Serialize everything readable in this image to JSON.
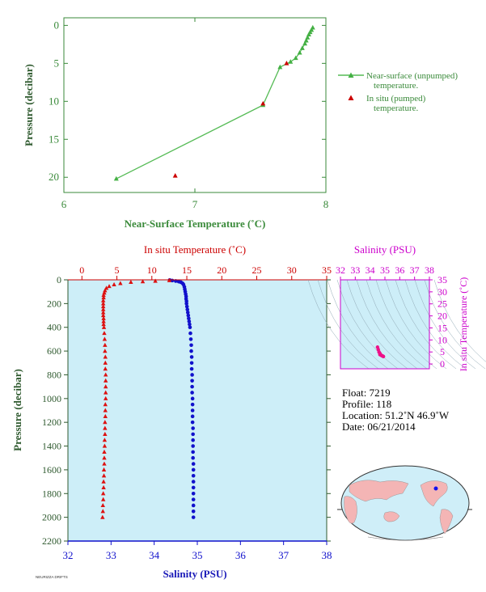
{
  "chart_data": [
    {
      "type": "line",
      "xlabel": "Near-Surface Temperature (˚C)",
      "ylabel": "Pressure (decibar)",
      "xlim": [
        6,
        8
      ],
      "ylim": [
        22,
        -1
      ],
      "x_ticks": [
        "6",
        "7",
        "8"
      ],
      "y_ticks": [
        "0",
        "5",
        "10",
        "15",
        "20"
      ],
      "legend_position": "right",
      "series": [
        {
          "name": "Near-surface (unpumped) temperature.",
          "marker": "triangle",
          "color": "#44b044",
          "points": [
            [
              7.9,
              0.3
            ],
            [
              7.89,
              0.6
            ],
            [
              7.88,
              0.9
            ],
            [
              7.87,
              1.2
            ],
            [
              7.86,
              1.6
            ],
            [
              7.85,
              2.0
            ],
            [
              7.84,
              2.4
            ],
            [
              7.82,
              3.0
            ],
            [
              7.8,
              3.6
            ],
            [
              7.77,
              4.3
            ],
            [
              7.73,
              4.8
            ],
            [
              7.65,
              5.5
            ],
            [
              7.52,
              10.5
            ],
            [
              6.4,
              20.2
            ]
          ]
        },
        {
          "name": "In situ (pumped) temperature.",
          "marker": "triangle",
          "color": "#cc0000",
          "points": [
            [
              7.7,
              5.0
            ],
            [
              7.52,
              10.3
            ],
            [
              6.85,
              19.8
            ]
          ]
        }
      ]
    },
    {
      "type": "scatter",
      "ylabel": "Pressure (decibar)",
      "ylim": [
        2200,
        0
      ],
      "y_ticks": [
        "0",
        "200",
        "400",
        "600",
        "800",
        "1000",
        "1200",
        "1400",
        "1600",
        "1800",
        "2000",
        "2200"
      ],
      "top_axis": {
        "label": "In situ Temperature (˚C)",
        "range": [
          -2,
          35
        ],
        "ticks": [
          "0",
          "5",
          "10",
          "15",
          "20",
          "25",
          "30",
          "35"
        ]
      },
      "bottom_axis": {
        "label": "Salinity (PSU)",
        "range": [
          32,
          38
        ],
        "ticks": [
          "32",
          "33",
          "34",
          "35",
          "36",
          "37",
          "38"
        ]
      },
      "series": [
        {
          "name": "In situ Temperature",
          "marker": "triangle",
          "color": "#dd1111",
          "points": [
            [
              12.5,
              5
            ],
            [
              10.5,
              10
            ],
            [
              8.7,
              15
            ],
            [
              7.0,
              20
            ],
            [
              5.5,
              30
            ],
            [
              4.6,
              40
            ],
            [
              3.9,
              55
            ],
            [
              3.5,
              70
            ],
            [
              3.3,
              90
            ],
            [
              3.2,
              110
            ],
            [
              3.1,
              130
            ],
            [
              3.1,
              150
            ],
            [
              3.05,
              175
            ],
            [
              3.05,
              200
            ],
            [
              3.05,
              225
            ],
            [
              3.05,
              250
            ],
            [
              3.05,
              275
            ],
            [
              3.05,
              300
            ],
            [
              3.1,
              325
            ],
            [
              3.1,
              350
            ],
            [
              3.1,
              375
            ],
            [
              3.15,
              400
            ],
            [
              3.2,
              450
            ],
            [
              3.25,
              500
            ],
            [
              3.3,
              550
            ],
            [
              3.3,
              600
            ],
            [
              3.35,
              650
            ],
            [
              3.35,
              700
            ],
            [
              3.35,
              750
            ],
            [
              3.4,
              800
            ],
            [
              3.4,
              850
            ],
            [
              3.4,
              900
            ],
            [
              3.4,
              950
            ],
            [
              3.4,
              1000
            ],
            [
              3.35,
              1050
            ],
            [
              3.35,
              1100
            ],
            [
              3.35,
              1150
            ],
            [
              3.3,
              1200
            ],
            [
              3.3,
              1250
            ],
            [
              3.3,
              1300
            ],
            [
              3.25,
              1350
            ],
            [
              3.25,
              1400
            ],
            [
              3.2,
              1450
            ],
            [
              3.2,
              1500
            ],
            [
              3.2,
              1550
            ],
            [
              3.15,
              1600
            ],
            [
              3.15,
              1650
            ],
            [
              3.1,
              1700
            ],
            [
              3.1,
              1750
            ],
            [
              3.05,
              1800
            ],
            [
              3.05,
              1850
            ],
            [
              3.0,
              1900
            ],
            [
              3.0,
              1950
            ],
            [
              2.95,
              2000
            ]
          ]
        },
        {
          "name": "Salinity",
          "marker": "circle",
          "color": "#1111cc",
          "points": [
            [
              34.36,
              2
            ],
            [
              34.42,
              6
            ],
            [
              34.5,
              10
            ],
            [
              34.57,
              15
            ],
            [
              34.62,
              20
            ],
            [
              34.66,
              30
            ],
            [
              34.68,
              40
            ],
            [
              34.7,
              60
            ],
            [
              34.71,
              80
            ],
            [
              34.72,
              100
            ],
            [
              34.73,
              120
            ],
            [
              34.74,
              140
            ],
            [
              34.74,
              160
            ],
            [
              34.75,
              180
            ],
            [
              34.75,
              200
            ],
            [
              34.76,
              225
            ],
            [
              34.77,
              250
            ],
            [
              34.78,
              275
            ],
            [
              34.79,
              300
            ],
            [
              34.8,
              325
            ],
            [
              34.81,
              350
            ],
            [
              34.82,
              375
            ],
            [
              34.83,
              400
            ],
            [
              34.84,
              450
            ],
            [
              34.85,
              500
            ],
            [
              34.86,
              550
            ],
            [
              34.86,
              600
            ],
            [
              34.87,
              650
            ],
            [
              34.87,
              700
            ],
            [
              34.87,
              750
            ],
            [
              34.88,
              800
            ],
            [
              34.88,
              850
            ],
            [
              34.88,
              900
            ],
            [
              34.88,
              950
            ],
            [
              34.89,
              1000
            ],
            [
              34.89,
              1050
            ],
            [
              34.89,
              1100
            ],
            [
              34.89,
              1150
            ],
            [
              34.89,
              1200
            ],
            [
              34.9,
              1250
            ],
            [
              34.9,
              1300
            ],
            [
              34.9,
              1350
            ],
            [
              34.9,
              1400
            ],
            [
              34.9,
              1450
            ],
            [
              34.9,
              1500
            ],
            [
              34.91,
              1550
            ],
            [
              34.91,
              1600
            ],
            [
              34.91,
              1650
            ],
            [
              34.91,
              1700
            ],
            [
              34.91,
              1750
            ],
            [
              34.91,
              1800
            ],
            [
              34.91,
              1850
            ],
            [
              34.91,
              1900
            ],
            [
              34.91,
              1950
            ],
            [
              34.91,
              2000
            ]
          ]
        }
      ]
    },
    {
      "type": "scatter",
      "top_axis": {
        "label": "Salinity (PSU)",
        "range": [
          32,
          38
        ],
        "ticks": [
          "32",
          "33",
          "34",
          "35",
          "36",
          "37",
          "38"
        ]
      },
      "right_axis": {
        "label": "In situ Temperature (˚C)",
        "range": [
          -2,
          35
        ],
        "ticks": [
          "0",
          "5",
          "10",
          "15",
          "20",
          "25",
          "30",
          "35"
        ]
      },
      "series": [
        {
          "name": "T-S",
          "marker": "circle",
          "color": "#ee1188",
          "points": [
            [
              34.5,
              7
            ],
            [
              34.55,
              6
            ],
            [
              34.6,
              5
            ],
            [
              34.65,
              4.5
            ],
            [
              34.7,
              4
            ],
            [
              34.75,
              3.6
            ],
            [
              34.8,
              3.4
            ],
            [
              34.85,
              3.3
            ],
            [
              34.88,
              3.2
            ],
            [
              34.9,
              3.1
            ],
            [
              34.7,
              3.8
            ],
            [
              34.66,
              3.9
            ]
          ]
        }
      ]
    }
  ],
  "info": {
    "float": "Float:  7219",
    "profile": "Profile:  118",
    "location": "Location:  51.2˚N  46.9˚W",
    "date": "Date:  06/21/2014"
  },
  "credit": "NEURIZZA DRIFTS",
  "colors": {
    "plot_bg": "#cdeef8",
    "green_axis": "#3a8a3a",
    "green_line": "#55bb55",
    "red": "#dd1111",
    "blue": "#1111cc",
    "magenta": "#cc00cc",
    "map_ocean": "#cfeef8",
    "map_land": "#f4b5b5"
  }
}
